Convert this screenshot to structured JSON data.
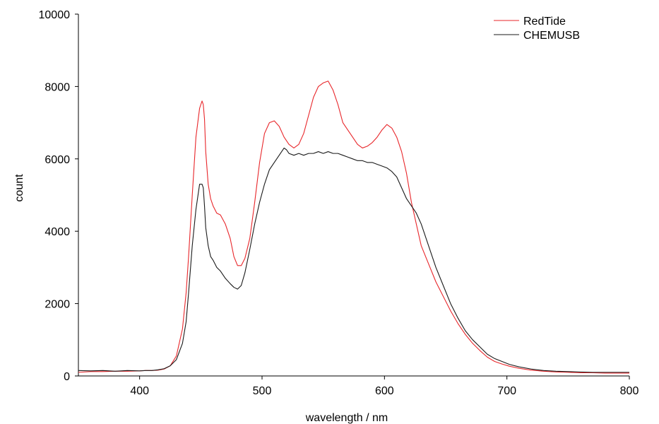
{
  "chart_data": {
    "type": "line",
    "xlabel": "wavelength / nm",
    "ylabel": "count",
    "xlim": [
      350,
      800
    ],
    "ylim": [
      0,
      10000
    ],
    "x_ticks": [
      400,
      500,
      600,
      700,
      800
    ],
    "y_ticks": [
      0,
      2000,
      4000,
      6000,
      8000,
      10000
    ],
    "grid": false,
    "legend_placement": "top-right",
    "series": [
      {
        "name": "RedTide",
        "color": "#e8262a",
        "x": [
          350,
          360,
          370,
          380,
          390,
          400,
          405,
          410,
          415,
          420,
          425,
          430,
          435,
          438,
          440,
          443,
          446,
          449,
          451,
          452,
          453,
          454,
          456,
          458,
          460,
          463,
          466,
          470,
          474,
          477,
          480,
          483,
          486,
          490,
          494,
          498,
          502,
          506,
          510,
          514,
          518,
          522,
          526,
          530,
          534,
          538,
          542,
          546,
          550,
          554,
          558,
          562,
          566,
          570,
          574,
          578,
          582,
          586,
          590,
          594,
          598,
          602,
          606,
          610,
          614,
          618,
          622,
          626,
          630,
          636,
          642,
          648,
          654,
          660,
          666,
          672,
          678,
          684,
          690,
          696,
          702,
          710,
          720,
          730,
          740,
          750,
          760,
          770,
          780,
          790,
          800
        ],
        "y": [
          100,
          120,
          120,
          130,
          130,
          140,
          150,
          150,
          160,
          190,
          280,
          550,
          1300,
          2300,
          3300,
          5000,
          6600,
          7400,
          7600,
          7500,
          7100,
          6200,
          5300,
          4900,
          4700,
          4500,
          4450,
          4200,
          3800,
          3300,
          3050,
          3050,
          3250,
          3800,
          4800,
          5900,
          6700,
          7000,
          7050,
          6900,
          6600,
          6400,
          6300,
          6400,
          6700,
          7200,
          7700,
          8000,
          8100,
          8150,
          7900,
          7500,
          7000,
          6800,
          6600,
          6400,
          6300,
          6350,
          6450,
          6600,
          6800,
          6950,
          6850,
          6600,
          6200,
          5600,
          4800,
          4200,
          3600,
          3100,
          2600,
          2200,
          1800,
          1450,
          1150,
          900,
          700,
          520,
          400,
          330,
          270,
          210,
          160,
          130,
          110,
          100,
          90,
          90,
          80,
          80,
          80
        ]
      },
      {
        "name": "CHEMUSB",
        "color": "#1a1a1a",
        "x": [
          350,
          360,
          370,
          380,
          390,
          400,
          405,
          410,
          415,
          420,
          425,
          430,
          435,
          438,
          440,
          443,
          446,
          449,
          451,
          452,
          453,
          454,
          456,
          458,
          460,
          463,
          466,
          470,
          474,
          477,
          480,
          483,
          486,
          490,
          494,
          498,
          502,
          506,
          510,
          514,
          518,
          520,
          522,
          526,
          530,
          534,
          538,
          542,
          546,
          550,
          554,
          558,
          562,
          566,
          570,
          574,
          578,
          582,
          586,
          590,
          594,
          598,
          602,
          606,
          610,
          614,
          618,
          622,
          626,
          630,
          636,
          642,
          648,
          654,
          660,
          666,
          672,
          678,
          684,
          690,
          696,
          702,
          710,
          720,
          730,
          740,
          750,
          760,
          770,
          780,
          790,
          800
        ],
        "y": [
          150,
          140,
          150,
          130,
          150,
          140,
          150,
          150,
          170,
          200,
          280,
          450,
          900,
          1500,
          2300,
          3600,
          4600,
          5300,
          5300,
          5200,
          4700,
          4100,
          3600,
          3300,
          3200,
          3000,
          2900,
          2700,
          2550,
          2450,
          2400,
          2500,
          2850,
          3500,
          4200,
          4800,
          5300,
          5700,
          5900,
          6100,
          6300,
          6250,
          6150,
          6100,
          6150,
          6100,
          6150,
          6150,
          6200,
          6150,
          6200,
          6150,
          6150,
          6100,
          6050,
          6000,
          5950,
          5950,
          5900,
          5900,
          5850,
          5800,
          5750,
          5650,
          5500,
          5200,
          4900,
          4700,
          4500,
          4200,
          3600,
          3000,
          2500,
          2000,
          1600,
          1250,
          1000,
          800,
          600,
          480,
          400,
          320,
          250,
          190,
          150,
          130,
          120,
          110,
          100,
          100,
          100,
          100
        ]
      }
    ]
  }
}
